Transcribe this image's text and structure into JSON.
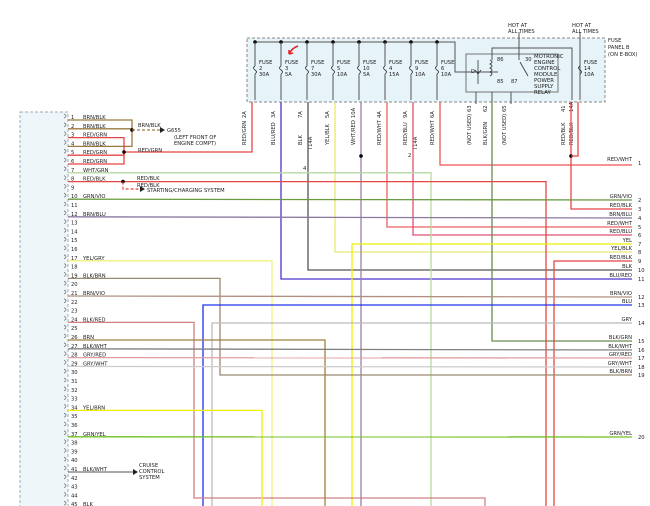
{
  "fuse_panel": {
    "title": [
      "FUSE",
      "PANEL B",
      "(ON E-BOX)"
    ],
    "fill_color": "#e6f3f8",
    "hot_labels": [
      [
        "HOT AT",
        "ALL TIMES"
      ],
      [
        "HOT AT",
        "ALL TIMES"
      ]
    ],
    "fuses": [
      {
        "name": "FUSE",
        "number": "2",
        "rating": "30A",
        "terminal": "2A",
        "wire": "RED/GRN",
        "color": "#e84545"
      },
      {
        "name": "FUSE",
        "number": "3",
        "rating": "5A",
        "terminal": "3A",
        "wire": "BLU/RED",
        "color": "#7a3ad8"
      },
      {
        "name": "FUSE",
        "number": "7",
        "rating": "30A",
        "terminal": "7A",
        "wire": "BLK",
        "color": "#555555"
      },
      {
        "name": "FUSE",
        "number": "5",
        "rating": "10A",
        "terminal": "5A",
        "wire": "YEL/BLK",
        "color": "#e8e040"
      },
      {
        "name": "FUSE",
        "number": "10",
        "rating": "5A",
        "terminal": "10A",
        "wire": "WHT/RED",
        "color": "#9a80a8"
      },
      {
        "name": "FUSE",
        "number": "4",
        "rating": "15A",
        "terminal": "4A",
        "wire": "RED/WHT",
        "color": "#ee5555"
      },
      {
        "name": "FUSE",
        "number": "9",
        "rating": "10A",
        "terminal": "9A",
        "wire": "RED/BLU",
        "color": "#6a50e0"
      },
      {
        "name": "FUSE",
        "number": "6",
        "rating": "10A",
        "terminal": "6A",
        "wire": "RED/WHT",
        "color": "#ee5555"
      }
    ],
    "fuse14": {
      "name": "FUSE",
      "number": "14",
      "rating": "10A"
    },
    "relay": {
      "label": [
        "MOTRONIC",
        "ENGINE",
        "CONTROL",
        "MODULE",
        "POWER",
        "SUPPLY",
        "RELAY"
      ],
      "terminals": [
        "86",
        "30",
        "85",
        "87"
      ],
      "diode": "D",
      "outputs": [
        {
          "terminal": "63",
          "wire": "(NOT USED)"
        },
        {
          "terminal": "62",
          "wire": "BLK/GRN",
          "color": "#6a9a50"
        },
        {
          "terminal": "65",
          "wire": "(NOT USED)"
        }
      ]
    },
    "right_outputs": [
      {
        "terminal": "41",
        "wire": "RED/BLK"
      },
      {
        "terminal": "14A",
        "wire": "RED/BLK"
      }
    ],
    "splice_labels": [
      "4",
      "T14A",
      "2",
      "T14A"
    ]
  },
  "annotation": {
    "arrow_color": "#e02020"
  },
  "left_connector": {
    "pins": [
      {
        "n": "1",
        "wire": "BRN/BLK"
      },
      {
        "n": "2",
        "wire": "BRN/BLK"
      },
      {
        "n": "3",
        "wire": "RED/GRN"
      },
      {
        "n": "4",
        "wire": "BRN/BLK"
      },
      {
        "n": "5",
        "wire": "RED/GRN"
      },
      {
        "n": "6",
        "wire": "RED/GRN"
      },
      {
        "n": "7",
        "wire": "WHT/GRN"
      },
      {
        "n": "8",
        "wire": "RED/BLK"
      },
      {
        "n": "9",
        "wire": ""
      },
      {
        "n": "10",
        "wire": "GRN/VIO"
      },
      {
        "n": "11",
        "wire": ""
      },
      {
        "n": "12",
        "wire": "BRN/BLU"
      },
      {
        "n": "13",
        "wire": ""
      },
      {
        "n": "14",
        "wire": ""
      },
      {
        "n": "15",
        "wire": ""
      },
      {
        "n": "16",
        "wire": ""
      },
      {
        "n": "17",
        "wire": "YEL/GRY"
      },
      {
        "n": "18",
        "wire": ""
      },
      {
        "n": "19",
        "wire": "BLK/BRN"
      },
      {
        "n": "20",
        "wire": ""
      },
      {
        "n": "21",
        "wire": "BRN/VIO"
      },
      {
        "n": "22",
        "wire": ""
      },
      {
        "n": "23",
        "wire": ""
      },
      {
        "n": "24",
        "wire": "BLK/RED"
      },
      {
        "n": "25",
        "wire": ""
      },
      {
        "n": "26",
        "wire": "BRN"
      },
      {
        "n": "27",
        "wire": "BLK/WHT"
      },
      {
        "n": "28",
        "wire": "GRY/RED"
      },
      {
        "n": "29",
        "wire": "GRY/WHT"
      },
      {
        "n": "30",
        "wire": ""
      },
      {
        "n": "31",
        "wire": ""
      },
      {
        "n": "32",
        "wire": ""
      },
      {
        "n": "33",
        "wire": ""
      },
      {
        "n": "34",
        "wire": "YEL/BRN"
      },
      {
        "n": "35",
        "wire": ""
      },
      {
        "n": "36",
        "wire": ""
      },
      {
        "n": "37",
        "wire": "GRN/YEL"
      },
      {
        "n": "38",
        "wire": ""
      },
      {
        "n": "39",
        "wire": ""
      },
      {
        "n": "40",
        "wire": ""
      },
      {
        "n": "41",
        "wire": "BLK/WHT"
      },
      {
        "n": "42",
        "wire": ""
      },
      {
        "n": "43",
        "wire": ""
      },
      {
        "n": "44",
        "wire": ""
      },
      {
        "n": "45",
        "wire": "BLK"
      }
    ]
  },
  "splices": {
    "ground": {
      "wire": "BRN/BLK",
      "target": "G655",
      "location": [
        "(LEFT FRONT OF",
        "ENGINE COMPT)"
      ]
    },
    "red_grn": {
      "wire": "RED/GRN"
    },
    "starting": {
      "wire1": "RED/BLK",
      "wire2": "RED/BLK",
      "target": "STARTING/CHARGING SYSTEM"
    },
    "cruise": {
      "target": [
        "CRUISE",
        "CONTROL",
        "SYSTEM"
      ]
    }
  },
  "right_connector": {
    "pins": [
      {
        "n": "1",
        "wire": "RED/WHT",
        "color": "#ee5555"
      },
      {
        "n": "2",
        "wire": "GRN/VIO",
        "color": "#6a9a40"
      },
      {
        "n": "3",
        "wire": "RED/BLK",
        "color": "#e84545"
      },
      {
        "n": "4",
        "wire": "BRN/BLU",
        "color": "#8a7aa0"
      },
      {
        "n": "5",
        "wire": "RED/WHT",
        "color": "#ee6060"
      },
      {
        "n": "6",
        "wire": "RED/BLU",
        "color": "#e05070"
      },
      {
        "n": "7",
        "wire": "YEL",
        "color": "#f0f000"
      },
      {
        "n": "8",
        "wire": "YEL/BLK",
        "color": "#e8e870"
      },
      {
        "n": "9",
        "wire": "RED/BLK",
        "color": "#e84545"
      },
      {
        "n": "10",
        "wire": "BLK",
        "color": "#555555"
      },
      {
        "n": "11",
        "wire": "BLU/RED",
        "color": "#5030d0"
      },
      {
        "n": "12",
        "wire": "BRN/VIO",
        "color": "#b09080"
      },
      {
        "n": "13",
        "wire": "BLU",
        "color": "#2030f0"
      },
      {
        "n": "14",
        "wire": "GRY",
        "color": "#bbbbbb"
      },
      {
        "n": "15",
        "wire": "BLK/GRN",
        "color": "#6a8a50"
      },
      {
        "n": "16",
        "wire": "BLK/WHT",
        "color": "#808080"
      },
      {
        "n": "17",
        "wire": "GRY/RED",
        "color": "#e0a0a0"
      },
      {
        "n": "18",
        "wire": "GRY/WHT",
        "color": "#cccccc"
      },
      {
        "n": "19",
        "wire": "BLK/BRN",
        "color": "#9a8a70"
      },
      {
        "n": "20",
        "wire": "GRN/YEL",
        "color": "#70c020"
      }
    ]
  }
}
